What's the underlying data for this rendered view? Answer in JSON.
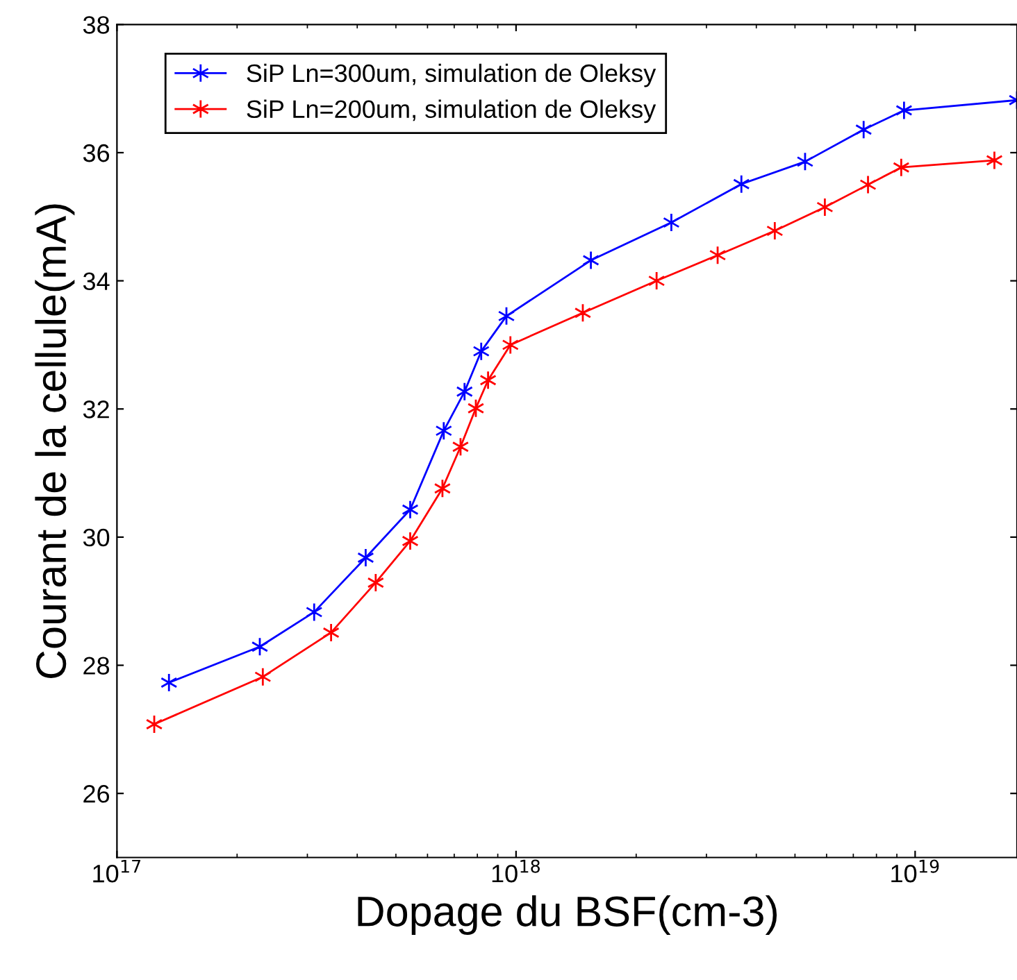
{
  "chart_data": {
    "type": "line",
    "xlabel": "Dopage du BSF(cm-3)",
    "ylabel": "Courant de la cellule(mA)",
    "log": "x",
    "grid": false,
    "legend": "top left",
    "marker": "cross",
    "line_style": "solid",
    "xlim": [
      1e+17,
      1.8e+19
    ],
    "xticks": [
      {
        "value": 1e+17,
        "label": "10$^{17}$"
      },
      {
        "value": 1e+18,
        "label": "10$^{18}$"
      },
      {
        "value": 1e+19,
        "label": "10$^{19}$"
      }
    ],
    "ylim": [
      25,
      38
    ],
    "yticks": [
      26,
      28,
      30,
      32,
      34,
      36,
      38
    ],
    "series": [
      {
        "name": "SiP Ln=300um, simulation de Oleksy",
        "color": "#0000ff",
        "x": [
          1.35e+17,
          2.28e+17,
          3.12e+17,
          4.2e+17,
          5.43e+17,
          6.59e+17,
          7.43e+17,
          8.18e+17,
          9.46e+17,
          1.54e+18,
          2.45e+18,
          3.67e+18,
          5.3e+18,
          7.43e+18,
          9.38e+18,
          1.8e+19
        ],
        "values": [
          27.73,
          28.29,
          28.83,
          29.68,
          30.43,
          31.66,
          32.27,
          32.9,
          33.45,
          34.32,
          34.91,
          35.51,
          35.86,
          36.36,
          36.66,
          36.82
        ]
      },
      {
        "name": "SiP Ln=200um, simulation de Oleksy",
        "color": "#ff0000",
        "x": [
          1.24e+17,
          2.32e+17,
          3.44e+17,
          4.45e+17,
          5.43e+17,
          6.54e+17,
          7.26e+17,
          7.93e+17,
          8.51e+17,
          9.68e+17,
          1.47e+18,
          2.25e+18,
          3.2e+18,
          4.45e+18,
          5.94e+18,
          7.62e+18,
          9.23e+18,
          1.58e+19
        ],
        "values": [
          27.08,
          27.82,
          28.51,
          29.29,
          29.94,
          30.76,
          31.41,
          32.01,
          32.45,
          33.0,
          33.5,
          34.0,
          34.4,
          34.78,
          35.15,
          35.5,
          35.77,
          35.88
        ]
      }
    ]
  }
}
